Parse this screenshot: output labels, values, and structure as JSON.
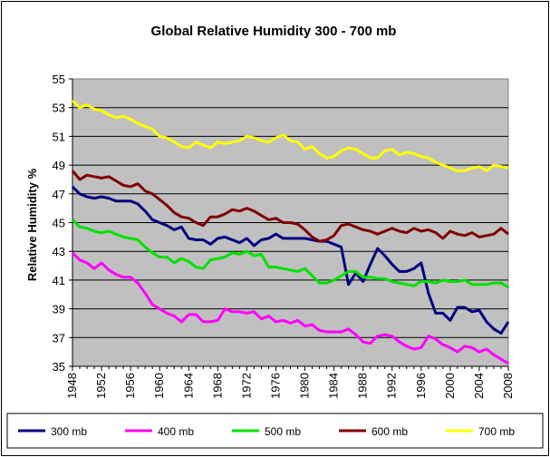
{
  "chart_data": {
    "type": "line",
    "title": "Global Relative Humidity 300 - 700 mb",
    "xlabel": "",
    "ylabel": "Relative Humidity %",
    "ylim": [
      35,
      55
    ],
    "xlim": [
      1948,
      2008
    ],
    "yticks": [
      35,
      37,
      39,
      41,
      43,
      45,
      47,
      49,
      51,
      53,
      55
    ],
    "xticks": [
      1948,
      1952,
      1956,
      1960,
      1964,
      1968,
      1972,
      1976,
      1980,
      1984,
      1988,
      1992,
      1996,
      2000,
      2004,
      2008
    ],
    "grid": "horizontal",
    "legend": "bottom",
    "plot_background": "#c0c0c0",
    "x": [
      1948,
      1949,
      1950,
      1951,
      1952,
      1953,
      1954,
      1955,
      1956,
      1957,
      1958,
      1959,
      1960,
      1961,
      1962,
      1963,
      1964,
      1965,
      1966,
      1967,
      1968,
      1969,
      1970,
      1971,
      1972,
      1973,
      1974,
      1975,
      1976,
      1977,
      1978,
      1979,
      1980,
      1981,
      1982,
      1983,
      1984,
      1985,
      1986,
      1987,
      1988,
      1989,
      1990,
      1991,
      1992,
      1993,
      1994,
      1995,
      1996,
      1997,
      1998,
      1999,
      2000,
      2001,
      2002,
      2003,
      2004,
      2005,
      2006,
      2007,
      2008
    ],
    "series": [
      {
        "name": "300 mb",
        "color": "#000080",
        "values": [
          47.5,
          47.0,
          46.8,
          46.7,
          46.8,
          46.7,
          46.5,
          46.5,
          46.5,
          46.3,
          45.8,
          45.2,
          45.0,
          44.8,
          44.5,
          44.7,
          43.9,
          43.8,
          43.8,
          43.5,
          43.9,
          44.0,
          43.8,
          43.6,
          43.9,
          43.4,
          43.8,
          43.9,
          44.2,
          43.9,
          43.9,
          43.9,
          43.9,
          43.8,
          43.7,
          43.7,
          43.5,
          43.3,
          40.7,
          41.5,
          40.9,
          42.1,
          43.2,
          42.7,
          42.1,
          41.6,
          41.6,
          41.8,
          42.2,
          40.1,
          38.7,
          38.7,
          38.2,
          39.1,
          39.1,
          38.8,
          38.9,
          38.1,
          37.6,
          37.3,
          38.1
        ]
      },
      {
        "name": "400 mb",
        "color": "#ff00ff",
        "values": [
          42.9,
          42.4,
          42.2,
          41.8,
          42.2,
          41.7,
          41.4,
          41.2,
          41.2,
          40.8,
          40.1,
          39.3,
          39.0,
          38.7,
          38.5,
          38.1,
          38.6,
          38.6,
          38.1,
          38.1,
          38.2,
          39.0,
          38.8,
          38.8,
          38.7,
          38.8,
          38.3,
          38.5,
          38.1,
          38.2,
          38.0,
          38.2,
          37.8,
          37.9,
          37.5,
          37.4,
          37.4,
          37.4,
          37.6,
          37.2,
          36.7,
          36.6,
          37.1,
          37.2,
          37.1,
          36.7,
          36.4,
          36.2,
          36.3,
          37.1,
          36.9,
          36.5,
          36.3,
          36.0,
          36.4,
          36.3,
          36.0,
          36.2,
          35.8,
          35.5,
          35.2
        ]
      },
      {
        "name": "500 mb",
        "color": "#00e000",
        "values": [
          45.2,
          44.7,
          44.6,
          44.4,
          44.3,
          44.4,
          44.2,
          44.0,
          43.9,
          43.8,
          43.3,
          42.9,
          42.6,
          42.6,
          42.2,
          42.5,
          42.3,
          41.9,
          41.8,
          42.4,
          42.5,
          42.6,
          42.9,
          42.8,
          43.0,
          42.7,
          42.8,
          41.9,
          41.9,
          41.8,
          41.7,
          41.6,
          41.8,
          41.3,
          40.8,
          40.8,
          41.0,
          41.3,
          41.6,
          41.6,
          41.2,
          41.2,
          41.1,
          41.1,
          40.9,
          40.8,
          40.7,
          40.6,
          40.9,
          40.9,
          40.8,
          41.0,
          40.9,
          40.9,
          41.0,
          40.7,
          40.7,
          40.7,
          40.8,
          40.8,
          40.5
        ]
      },
      {
        "name": "600 mb",
        "color": "#800000",
        "values": [
          48.6,
          48.0,
          48.3,
          48.2,
          48.1,
          48.2,
          47.9,
          47.6,
          47.5,
          47.7,
          47.2,
          47.0,
          46.6,
          46.2,
          45.7,
          45.4,
          45.3,
          45.0,
          44.8,
          45.4,
          45.4,
          45.6,
          45.9,
          45.8,
          46.0,
          45.8,
          45.5,
          45.2,
          45.3,
          45.0,
          45.0,
          44.9,
          44.5,
          44.0,
          43.7,
          43.8,
          44.1,
          44.8,
          44.9,
          44.7,
          44.5,
          44.4,
          44.2,
          44.4,
          44.6,
          44.4,
          44.3,
          44.6,
          44.4,
          44.5,
          44.3,
          43.9,
          44.4,
          44.2,
          44.1,
          44.3,
          44.0,
          44.1,
          44.2,
          44.6,
          44.2
        ]
      },
      {
        "name": "700 mb",
        "color": "#ffff00",
        "values": [
          53.5,
          53.0,
          53.2,
          52.9,
          52.8,
          52.5,
          52.3,
          52.4,
          52.2,
          51.9,
          51.7,
          51.5,
          51.0,
          50.9,
          50.6,
          50.3,
          50.2,
          50.6,
          50.4,
          50.2,
          50.6,
          50.5,
          50.6,
          50.7,
          51.0,
          50.9,
          50.7,
          50.6,
          50.9,
          51.1,
          50.7,
          50.6,
          50.1,
          50.3,
          49.8,
          49.5,
          49.6,
          50.0,
          50.2,
          50.1,
          49.8,
          49.5,
          49.5,
          50.0,
          50.1,
          49.7,
          49.9,
          49.8,
          49.6,
          49.5,
          49.2,
          49.0,
          48.8,
          48.6,
          48.6,
          48.8,
          48.9,
          48.6,
          49.0,
          48.9,
          48.8
        ]
      }
    ]
  }
}
